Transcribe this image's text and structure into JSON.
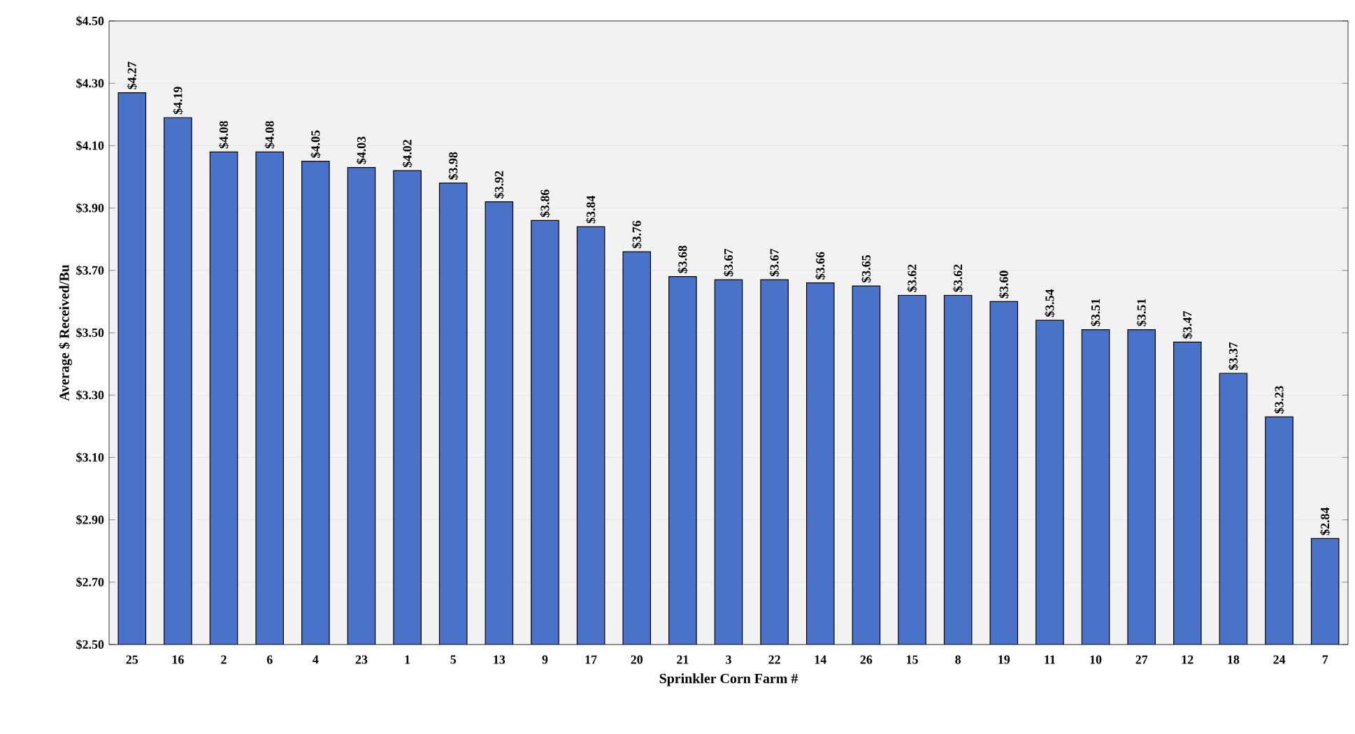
{
  "chart_data": {
    "type": "bar",
    "xlabel": "Sprinkler Corn Farm #",
    "ylabel": "Average $ Received/Bu",
    "categories": [
      "25",
      "16",
      "2",
      "6",
      "4",
      "23",
      "1",
      "5",
      "13",
      "9",
      "17",
      "20",
      "21",
      "3",
      "22",
      "14",
      "26",
      "15",
      "8",
      "19",
      "11",
      "10",
      "27",
      "12",
      "18",
      "24",
      "7"
    ],
    "values": [
      4.27,
      4.19,
      4.08,
      4.08,
      4.05,
      4.03,
      4.02,
      3.98,
      3.92,
      3.86,
      3.84,
      3.76,
      3.68,
      3.67,
      3.67,
      3.66,
      3.65,
      3.62,
      3.62,
      3.6,
      3.54,
      3.51,
      3.51,
      3.47,
      3.37,
      3.23,
      2.84
    ],
    "value_labels": [
      "$4.27",
      "$4.19",
      "$4.08",
      "$4.08",
      "$4.05",
      "$4.03",
      "$4.02",
      "$3.98",
      "$3.92",
      "$3.86",
      "$3.84",
      "$3.76",
      "$3.68",
      "$3.67",
      "$3.67",
      "$3.66",
      "$3.65",
      "$3.62",
      "$3.62",
      "$3.60",
      "$3.54",
      "$3.51",
      "$3.51",
      "$3.47",
      "$3.37",
      "$3.23",
      "$2.84"
    ],
    "color": "#4a72c8",
    "ylim": [
      2.5,
      4.5
    ],
    "yticks": [
      {
        "value": 2.5,
        "label": "$2.50"
      },
      {
        "value": 2.7,
        "label": "$2.70"
      },
      {
        "value": 2.9,
        "label": "$2.90"
      },
      {
        "value": 3.1,
        "label": "$3.10"
      },
      {
        "value": 3.3,
        "label": "$3.30"
      },
      {
        "value": 3.5,
        "label": "$3.50"
      },
      {
        "value": 3.7,
        "label": "$3.70"
      },
      {
        "value": 3.9,
        "label": "$3.90"
      },
      {
        "value": 4.1,
        "label": "$4.10"
      },
      {
        "value": 4.3,
        "label": "$4.30"
      },
      {
        "value": 4.5,
        "label": "$4.50"
      }
    ],
    "grid": "y"
  }
}
